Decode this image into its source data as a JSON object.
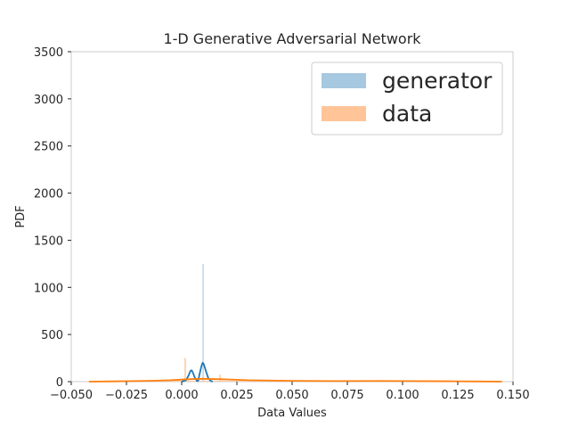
{
  "chart_data": {
    "type": "histogram+kde",
    "title": "1-D Generative Adversarial Network",
    "xlabel": "Data Values",
    "ylabel": "PDF",
    "xlim": [
      -0.05,
      0.15
    ],
    "ylim": [
      0,
      3500
    ],
    "xticks": [
      -0.05,
      -0.025,
      0.0,
      0.025,
      0.05,
      0.075,
      0.1,
      0.125,
      0.15
    ],
    "xtick_labels": [
      "−0.050",
      "−0.025",
      "0.000",
      "0.025",
      "0.050",
      "0.075",
      "0.100",
      "0.125",
      "0.150"
    ],
    "yticks": [
      0,
      500,
      1000,
      1500,
      2000,
      2500,
      3000,
      3500
    ],
    "ytick_labels": [
      "0",
      "500",
      "1000",
      "1500",
      "2000",
      "2500",
      "3000",
      "3500"
    ],
    "grid": false,
    "legend_placement": "top-right",
    "series": [
      {
        "name": "generator",
        "hist_color": "#a6c8e0",
        "line_color": "#1f77b4",
        "hist_bars": [
          {
            "x0": 0.0094,
            "x1": 0.01,
            "y": 1250
          }
        ],
        "kde": [
          [
            0.0,
            0
          ],
          [
            0.002,
            15
          ],
          [
            0.003,
            60
          ],
          [
            0.004,
            115
          ],
          [
            0.0045,
            120
          ],
          [
            0.005,
            100
          ],
          [
            0.006,
            40
          ],
          [
            0.007,
            5
          ],
          [
            0.0075,
            10
          ],
          [
            0.008,
            70
          ],
          [
            0.009,
            170
          ],
          [
            0.0095,
            200
          ],
          [
            0.01,
            185
          ],
          [
            0.011,
            110
          ],
          [
            0.012,
            40
          ],
          [
            0.013,
            10
          ],
          [
            0.014,
            0
          ]
        ]
      },
      {
        "name": "data",
        "hist_color": "#ffc599",
        "line_color": "#ff7f0e",
        "hist_bars": [
          {
            "x0": 0.0012,
            "x1": 0.002,
            "y": 250
          },
          {
            "x0": 0.017,
            "x1": 0.0178,
            "y": 75
          },
          {
            "x0": -0.015,
            "x1": 0.06,
            "y": 10
          }
        ],
        "kde": [
          [
            -0.042,
            0
          ],
          [
            -0.03,
            3
          ],
          [
            -0.015,
            8
          ],
          [
            -0.005,
            15
          ],
          [
            0.0,
            22
          ],
          [
            0.005,
            28
          ],
          [
            0.01,
            30
          ],
          [
            0.02,
            24
          ],
          [
            0.03,
            15
          ],
          [
            0.05,
            8
          ],
          [
            0.07,
            6
          ],
          [
            0.09,
            7
          ],
          [
            0.1,
            6
          ],
          [
            0.12,
            4
          ],
          [
            0.135,
            2
          ],
          [
            0.145,
            0
          ]
        ]
      }
    ]
  }
}
